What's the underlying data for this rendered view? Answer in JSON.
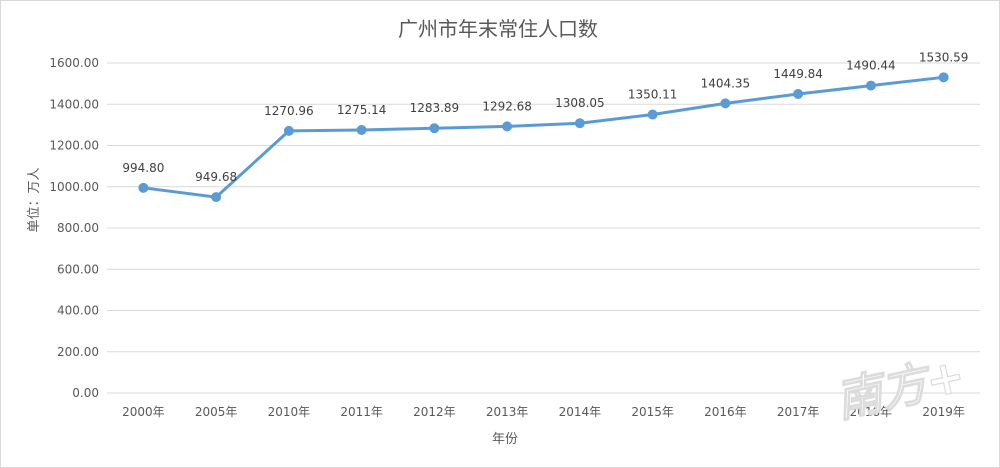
{
  "chart_data": {
    "type": "line",
    "title": "广州市年末常住人口数",
    "xlabel": "年份",
    "ylabel": "单位：万人",
    "categories": [
      "2000年",
      "2005年",
      "2010年",
      "2011年",
      "2012年",
      "2013年",
      "2014年",
      "2015年",
      "2016年",
      "2017年",
      "2018年",
      "2019年"
    ],
    "series": [
      {
        "values": [
          994.8,
          949.68,
          1270.96,
          1275.14,
          1283.89,
          1292.68,
          1308.05,
          1350.11,
          1404.35,
          1449.84,
          1490.44,
          1530.59
        ]
      }
    ],
    "data_labels": [
      "994.80",
      "949.68",
      "1270.96",
      "1275.14",
      "1283.89",
      "1292.68",
      "1308.05",
      "1350.11",
      "1404.35",
      "1449.84",
      "1490.44",
      "1530.59"
    ],
    "yticks": [
      "0.00",
      "200.00",
      "400.00",
      "600.00",
      "800.00",
      "1000.00",
      "1200.00",
      "1400.00",
      "1600.00"
    ],
    "ylim": [
      0,
      1600
    ],
    "grid": true,
    "legend": "none",
    "series_color": "#5b9bd5",
    "grid_color": "#d9d9d9",
    "watermark_text": "南方+"
  }
}
